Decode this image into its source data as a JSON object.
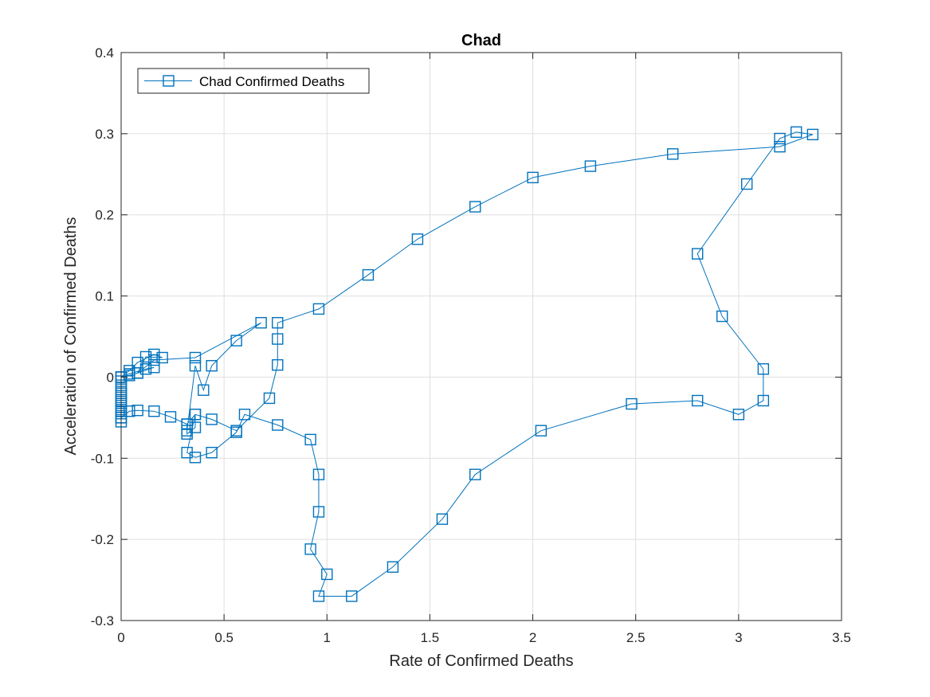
{
  "chart_data": {
    "type": "line",
    "title": "Chad",
    "xlabel": "Rate of Confirmed Deaths",
    "ylabel": "Acceleration of Confirmed Deaths",
    "xlim": [
      0,
      3.5
    ],
    "ylim": [
      -0.3,
      0.4
    ],
    "xticks": [
      0,
      0.5,
      1,
      1.5,
      2,
      2.5,
      3,
      3.5
    ],
    "xtick_labels": [
      "0",
      "0.5",
      "1",
      "1.5",
      "2",
      "2.5",
      "3",
      "3.5"
    ],
    "yticks": [
      -0.3,
      -0.2,
      -0.1,
      0,
      0.1,
      0.2,
      0.3,
      0.4
    ],
    "ytick_labels": [
      "-0.3",
      "-0.2",
      "-0.1",
      "0",
      "0.1",
      "0.2",
      "0.3",
      "0.4"
    ],
    "grid": true,
    "legend_position": "top-left",
    "marker": "square",
    "color": "#0072bd",
    "series": [
      {
        "name": "Chad Confirmed Deaths",
        "x": [
          0,
          0,
          0,
          0,
          0,
          0,
          0,
          0,
          0,
          0,
          0,
          0,
          0.04,
          0.08,
          0.16,
          0.2,
          0.12,
          0.08,
          0.16,
          0.12,
          0.04,
          0,
          0,
          0,
          0,
          0,
          0.04,
          0.08,
          0.16,
          0.24,
          0.32,
          0.32,
          0.36,
          0.36,
          0.32,
          0.36,
          0.44,
          0.56,
          0.6,
          0.76,
          0.92,
          0.96,
          0.96,
          0.92,
          1.0,
          0.96,
          1.12,
          1.32,
          1.56,
          1.72,
          2.04,
          2.48,
          2.8,
          3.0,
          3.12,
          3.12,
          2.92,
          2.8,
          3.04,
          3.2,
          3.28,
          3.36,
          3.2,
          2.68,
          2.28,
          2.0,
          1.72,
          1.44,
          1.2,
          0.96,
          0.76,
          0.76,
          0.76,
          0.72,
          0.56,
          0.44,
          0.36,
          0.32,
          0.32,
          0.36,
          0.4,
          0.44,
          0.56,
          0.68,
          0.36,
          0.16,
          0.08,
          0.04,
          0
        ],
        "y": [
          -0.055,
          -0.05,
          -0.045,
          -0.04,
          -0.035,
          -0.03,
          -0.025,
          -0.02,
          -0.015,
          -0.01,
          -0.005,
          0,
          0.008,
          0.018,
          0.028,
          0.024,
          0.025,
          0.005,
          0.012,
          0.01,
          0.004,
          0,
          -0.02,
          -0.03,
          -0.042,
          -0.05,
          -0.042,
          -0.041,
          -0.042,
          -0.049,
          -0.058,
          -0.07,
          -0.062,
          -0.046,
          -0.093,
          -0.099,
          -0.093,
          -0.068,
          -0.046,
          -0.059,
          -0.077,
          -0.12,
          -0.166,
          -0.212,
          -0.243,
          -0.27,
          -0.27,
          -0.234,
          -0.175,
          -0.12,
          -0.066,
          -0.033,
          -0.029,
          -0.046,
          -0.029,
          0.01,
          0.075,
          0.152,
          0.238,
          0.294,
          0.302,
          0.299,
          0.284,
          0.275,
          0.26,
          0.246,
          0.21,
          0.17,
          0.126,
          0.084,
          0.067,
          0.047,
          0.015,
          -0.026,
          -0.066,
          -0.052,
          -0.046,
          -0.058,
          -0.066,
          0.014,
          -0.016,
          0.014,
          0.045,
          0.067,
          0.024,
          0.021,
          0.005,
          0.002,
          0
        ]
      }
    ]
  }
}
